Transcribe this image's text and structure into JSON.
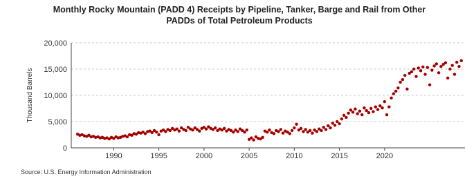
{
  "chart_data": {
    "type": "scatter",
    "title": [
      "Monthly Rocky Mountain (PADD 4) Receipts by Pipeline, Tanker, Barge and Rail from Other",
      "PADDs of Total Petroleum Products"
    ],
    "y_label": "Thousand Barrels",
    "source": "Source: U.S. Energy Information Administration",
    "color": "#a50000",
    "grid": true,
    "xlim": [
      1985.3,
      2028.9
    ],
    "xticks": [
      1990,
      1995,
      2000,
      2005,
      2010,
      2015,
      2020
    ],
    "ylim": [
      0,
      20000
    ],
    "yticks": [
      0,
      {
        "value": 5000,
        "label": "5,000"
      },
      {
        "value": 10000,
        "label": "10,000"
      },
      {
        "value": 15000,
        "label": "15,000"
      },
      {
        "value": 20000,
        "label": "20,000"
      }
    ],
    "x": [
      1986,
      1986.25,
      1986.5,
      1986.75,
      1987,
      1987.25,
      1987.5,
      1987.75,
      1988,
      1988.25,
      1988.5,
      1988.75,
      1989,
      1989.25,
      1989.5,
      1989.75,
      1990,
      1990.25,
      1990.5,
      1990.75,
      1991,
      1991.25,
      1991.5,
      1991.75,
      1992,
      1992.25,
      1992.5,
      1992.75,
      1993,
      1993.25,
      1993.5,
      1993.75,
      1994,
      1994.25,
      1994.5,
      1994.75,
      1995,
      1995.25,
      1995.5,
      1995.75,
      1996,
      1996.25,
      1996.5,
      1996.75,
      1997,
      1997.25,
      1997.5,
      1997.75,
      1998,
      1998.25,
      1998.5,
      1998.75,
      1999,
      1999.25,
      1999.5,
      1999.75,
      2000,
      2000.25,
      2000.5,
      2000.75,
      2001,
      2001.25,
      2001.5,
      2001.75,
      2002,
      2002.25,
      2002.5,
      2002.75,
      2003,
      2003.25,
      2003.5,
      2003.75,
      2004,
      2004.25,
      2004.5,
      2004.75,
      2005,
      2005.25,
      2005.5,
      2005.75,
      2006,
      2006.25,
      2006.5,
      2006.75,
      2007,
      2007.25,
      2007.5,
      2007.75,
      2008,
      2008.25,
      2008.5,
      2008.75,
      2009,
      2009.25,
      2009.5,
      2009.75,
      2010,
      2010.25,
      2010.5,
      2010.75,
      2011,
      2011.25,
      2011.5,
      2011.75,
      2012,
      2012.25,
      2012.5,
      2012.75,
      2013,
      2013.25,
      2013.5,
      2013.75,
      2014,
      2014.25,
      2014.5,
      2014.75,
      2015,
      2015.25,
      2015.5,
      2015.75,
      2016,
      2016.25,
      2016.5,
      2016.75,
      2017,
      2017.25,
      2017.5,
      2017.75,
      2018,
      2018.25,
      2018.5,
      2018.75,
      2019,
      2019.25,
      2019.5,
      2019.75,
      2020,
      2020.25,
      2020.5,
      2020.75,
      2021,
      2021.25,
      2021.5,
      2021.75,
      2022,
      2022.25,
      2022.5,
      2022.75,
      2023,
      2023.25,
      2023.5,
      2023.75,
      2024,
      2024.25,
      2024.5,
      2024.75,
      2025,
      2025.25,
      2025.5,
      2025.75,
      2026,
      2026.25,
      2026.5,
      2026.75,
      2027,
      2027.25,
      2027.5,
      2027.75,
      2028,
      2028.25,
      2028.5
    ],
    "values": [
      2600,
      2400,
      2500,
      2300,
      2200,
      2400,
      2100,
      2200,
      2000,
      2100,
      1900,
      2000,
      1800,
      1900,
      1700,
      2000,
      1800,
      2100,
      1900,
      2000,
      2200,
      2300,
      2100,
      2500,
      2400,
      2700,
      2600,
      2900,
      2800,
      3000,
      2700,
      3100,
      3200,
      2900,
      3300,
      3000,
      2500,
      3200,
      3400,
      3100,
      3500,
      3300,
      3700,
      3400,
      3600,
      3200,
      3800,
      3500,
      3300,
      3900,
      3600,
      3400,
      3800,
      3500,
      3200,
      3700,
      3900,
      3600,
      4000,
      3700,
      3500,
      3800,
      3300,
      3600,
      3400,
      3700,
      3200,
      3500,
      3300,
      3000,
      3400,
      3100,
      3600,
      3300,
      3000,
      3400,
      1600,
      1900,
      1500,
      2100,
      1800,
      1700,
      2000,
      3200,
      3000,
      3400,
      2900,
      2700,
      3300,
      3100,
      3500,
      2800,
      3200,
      3000,
      2700,
      3300,
      3800,
      4500,
      3400,
      3700,
      3100,
      3500,
      3000,
      3300,
      2800,
      3400,
      3100,
      3600,
      3300,
      3900,
      3500,
      4200,
      3800,
      4700,
      4300,
      5000,
      4600,
      5500,
      6200,
      5800,
      6600,
      7200,
      6800,
      7400,
      6500,
      7000,
      6300,
      7600,
      7100,
      6700,
      7500,
      6900,
      7800,
      7300,
      8000,
      7600,
      8800,
      6300,
      7800,
      9500,
      10300,
      10800,
      11400,
      12500,
      13000,
      13800,
      11200,
      14200,
      14500,
      15000,
      13600,
      15200,
      14700,
      15400,
      14000,
      15300,
      12000,
      14800,
      15600,
      16000,
      14300,
      15500,
      15900,
      16200,
      13300,
      15000,
      15700,
      14000,
      16300,
      15500,
      16600
    ]
  }
}
